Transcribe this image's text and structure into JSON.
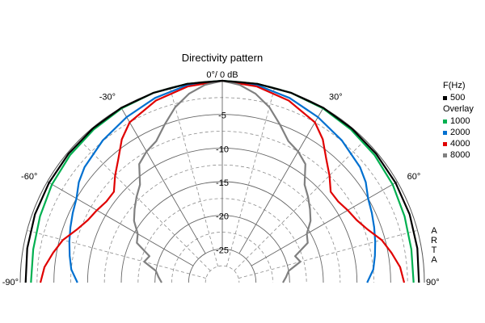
{
  "chart_data": {
    "type": "polar",
    "title": "Directivity pattern",
    "top_label": "0°/ 0 dB",
    "angle_labels": [
      {
        "angle": -90,
        "text": "-90°"
      },
      {
        "angle": -60,
        "text": "-60°"
      },
      {
        "angle": -30,
        "text": "-30°"
      },
      {
        "angle": 30,
        "text": "30°"
      },
      {
        "angle": 60,
        "text": "60°"
      },
      {
        "angle": 90,
        "text": "90°"
      }
    ],
    "angle_range": [
      -90,
      90
    ],
    "r_range_db": [
      -30,
      0
    ],
    "r_ticks": [
      -5,
      -10,
      -15,
      -20,
      -25
    ],
    "r_tick_labels": [
      "-5",
      "-10",
      "-15",
      "-20",
      "-25"
    ],
    "grid": true,
    "legend": {
      "position": "right",
      "header1": "F(Hz)",
      "header2": "Overlay"
    },
    "series": [
      {
        "name": "500",
        "color": "#000000",
        "angles": [
          -90,
          -80,
          -70,
          -60,
          -50,
          -40,
          -30,
          -20,
          -10,
          0,
          10,
          20,
          30,
          40,
          50,
          60,
          70,
          80,
          90
        ],
        "values": [
          -0.8,
          -0.6,
          -0.4,
          -0.3,
          -0.2,
          -0.1,
          0,
          0,
          0,
          0,
          0,
          0,
          0,
          -0.1,
          -0.2,
          -0.3,
          -0.4,
          -0.6,
          -0.8
        ]
      },
      {
        "name": "1000",
        "color": "#00b050",
        "angles": [
          -90,
          -80,
          -70,
          -60,
          -50,
          -40,
          -30,
          -20,
          -10,
          0,
          10,
          20,
          30,
          40,
          50,
          60,
          70,
          80,
          90
        ],
        "values": [
          -1.6,
          -1.5,
          -1.2,
          -0.8,
          -0.5,
          -0.3,
          -0.1,
          0,
          0,
          0,
          0,
          0,
          -0.1,
          -0.3,
          -0.5,
          -0.8,
          -1.2,
          -1.5,
          -1.6
        ]
      },
      {
        "name": "2000",
        "color": "#0070d0",
        "angles": [
          -90,
          -85,
          -80,
          -75,
          -70,
          -65,
          -60,
          -55,
          -50,
          -40,
          -30,
          -20,
          -10,
          0,
          10,
          20,
          30,
          40,
          50,
          55,
          60,
          65,
          70,
          75,
          80,
          85,
          90
        ],
        "values": [
          -8.5,
          -7.5,
          -7.0,
          -6.5,
          -6.0,
          -5.5,
          -5.0,
          -4.0,
          -3.3,
          -2.4,
          -1.6,
          -0.8,
          -0.2,
          0,
          -0.2,
          -0.8,
          -1.6,
          -2.4,
          -3.3,
          -4.0,
          -5.0,
          -5.5,
          -6.0,
          -6.5,
          -7.0,
          -7.5,
          -8.5
        ]
      },
      {
        "name": "4000",
        "color": "#e00000",
        "angles": [
          -90,
          -85,
          -80,
          -75,
          -70,
          -65,
          -60,
          -55,
          -50,
          -45,
          -40,
          -35,
          -30,
          -20,
          -10,
          0,
          10,
          20,
          30,
          35,
          40,
          45,
          50,
          55,
          60,
          65,
          70,
          75,
          80,
          85,
          90
        ],
        "values": [
          -3.0,
          -3.5,
          -4.5,
          -5.5,
          -7.0,
          -8.0,
          -8.5,
          -9.0,
          -9.0,
          -7.5,
          -6.0,
          -4.0,
          -2.5,
          -1.2,
          -0.4,
          0,
          -0.4,
          -1.2,
          -2.5,
          -4.0,
          -6.0,
          -7.5,
          -9.0,
          -9.0,
          -8.5,
          -8.0,
          -7.0,
          -5.5,
          -4.5,
          -3.5,
          -3.0
        ]
      },
      {
        "name": "8000",
        "color": "#808080",
        "angles": [
          -90,
          -85,
          -80,
          -75,
          -70,
          -65,
          -60,
          -55,
          -50,
          -45,
          -40,
          -35,
          -30,
          -25,
          -20,
          -15,
          -10,
          -5,
          0,
          5,
          10,
          15,
          20,
          25,
          30,
          35,
          40,
          45,
          50,
          55,
          60,
          65,
          70,
          75,
          80,
          85,
          90
        ],
        "values": [
          -21.0,
          -20.5,
          -20.0,
          -18.0,
          -18.5,
          -16.0,
          -15.5,
          -14.0,
          -13.0,
          -12.0,
          -11.0,
          -8.5,
          -7.5,
          -6.8,
          -5.0,
          -3.0,
          -1.5,
          -0.5,
          0,
          -0.5,
          -1.5,
          -3.0,
          -5.0,
          -6.8,
          -7.5,
          -8.5,
          -11.0,
          -12.0,
          -13.0,
          -14.0,
          -15.5,
          -16.0,
          -18.5,
          -18.0,
          -20.0,
          -20.5,
          -21.0
        ]
      }
    ]
  },
  "watermark": "ARTA"
}
